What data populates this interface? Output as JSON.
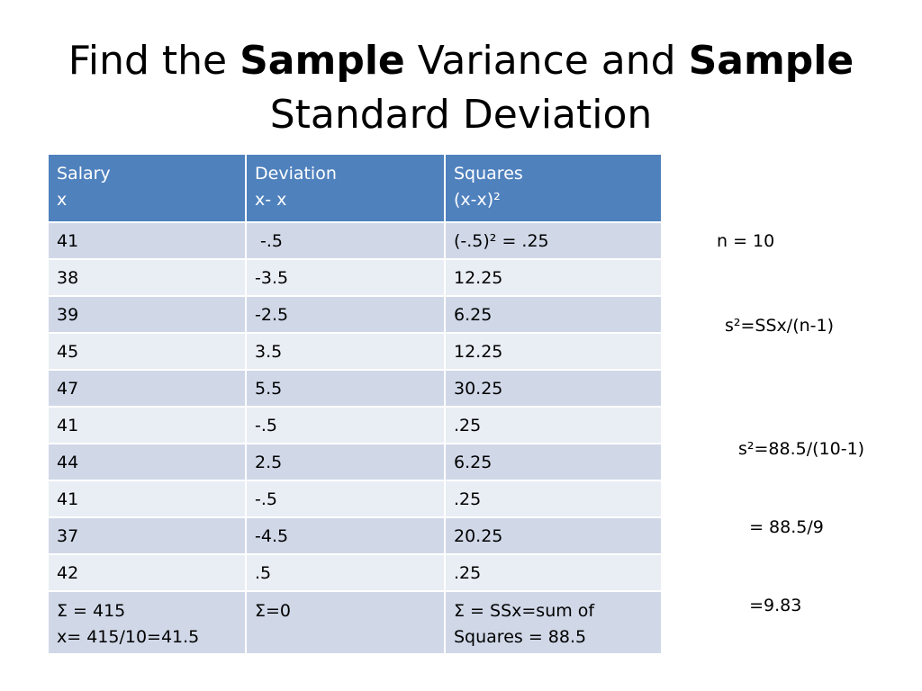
{
  "title": {
    "part1": "Find the ",
    "bold1": "Sample",
    "part2": " Variance and ",
    "bold2": "Sample",
    "line2": "Standard Deviation"
  },
  "table": {
    "headers": [
      {
        "line1": "Salary",
        "line2": "x"
      },
      {
        "line1": "Deviation",
        "line2": "x- x"
      },
      {
        "line1": "Squares",
        "line2": "(x-x)²"
      }
    ],
    "rows": [
      [
        "41",
        " -.5",
        "(-.5)² = .25"
      ],
      [
        "38",
        "-3.5",
        "12.25"
      ],
      [
        "39",
        "-2.5",
        "6.25"
      ],
      [
        "45",
        "3.5",
        "12.25"
      ],
      [
        "47",
        "5.5",
        "30.25"
      ],
      [
        "41",
        "-.5",
        ".25"
      ],
      [
        "44",
        "2.5",
        "6.25"
      ],
      [
        "41",
        "-.5",
        ".25"
      ],
      [
        "37",
        "-4.5",
        "20.25"
      ],
      [
        "42",
        ".5",
        ".25"
      ]
    ],
    "summary": {
      "col1_line1": "Σ = 415",
      "col1_line2": "x= 415/10=41.5",
      "col2": "Σ=0",
      "col3_line1": "Σ = SSx=sum of",
      "col3_line2": "Squares = 88.5"
    }
  },
  "notes": {
    "n": "n = 10",
    "formula": "s²=SSx/(n-1)",
    "calc_line1": "s²=88.5/(10-1)",
    "calc_line2": "  = 88.5/9",
    "calc_line3": "  =9.83"
  }
}
